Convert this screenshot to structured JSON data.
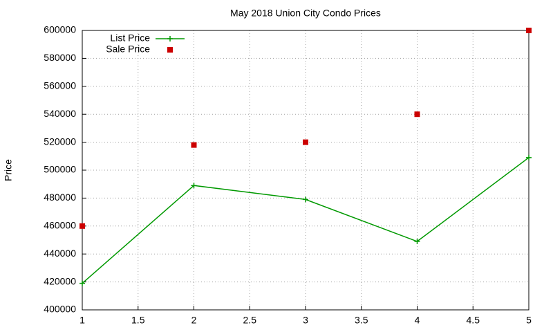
{
  "chart_data": {
    "type": "line",
    "title": "May 2018 Union City Condo Prices",
    "y_label": "Price",
    "x": [
      1,
      2,
      3,
      4,
      5
    ],
    "series": [
      {
        "name": "List Price",
        "color": "#009900",
        "line": true,
        "marker": "plus",
        "values": [
          419000,
          489000,
          479000,
          449000,
          509000
        ]
      },
      {
        "name": "Sale Price",
        "color": "#cc0000",
        "line": false,
        "marker": "square",
        "values": [
          460000,
          518000,
          520000,
          540000,
          600000
        ]
      }
    ],
    "xlim": [
      1,
      5
    ],
    "xticks": [
      1,
      1.5,
      2,
      2.5,
      3,
      3.5,
      4,
      4.5,
      5
    ],
    "ylim": [
      400000,
      600000
    ],
    "yticks": [
      400000,
      420000,
      440000,
      460000,
      480000,
      500000,
      520000,
      540000,
      560000,
      580000,
      600000
    ],
    "grid": true,
    "legend": "top-left"
  }
}
